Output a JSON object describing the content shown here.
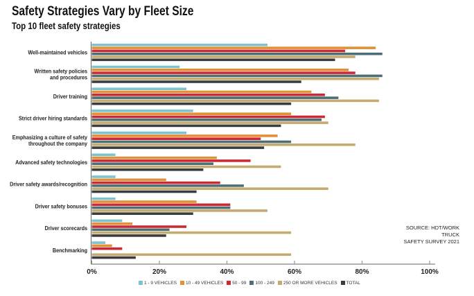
{
  "chart_data": {
    "type": "bar",
    "orientation": "horizontal",
    "title": "Safety Strategies Vary by Fleet Size",
    "subtitle": "Top 10 fleet safety strategies",
    "categories": [
      "Well-maintained vehicles",
      "Written safety policies and procedures",
      "Driver training",
      "Strict driver hiring standards",
      "Emphasizing a culture of safety throughout the company",
      "Advanced safety technologies",
      "Driver safety awards/recognition",
      "Driver safety bonuses",
      "Driver scorecards",
      "Benchmarking"
    ],
    "series": [
      {
        "name": "1 - 9 VEHICLES",
        "color": "#7cc3d0",
        "values": [
          52,
          26,
          28,
          30,
          28,
          7,
          7,
          7,
          9,
          4
        ]
      },
      {
        "name": "10 - 49 VEHICLES",
        "color": "#e38f35",
        "values": [
          84,
          76,
          65,
          59,
          55,
          37,
          22,
          31,
          12,
          6
        ]
      },
      {
        "name": "50 - 99",
        "color": "#cc2a33",
        "values": [
          75,
          78,
          69,
          69,
          50,
          47,
          38,
          41,
          28,
          9
        ]
      },
      {
        "name": "100 - 249",
        "color": "#4c6e74",
        "values": [
          86,
          86,
          73,
          68,
          59,
          36,
          45,
          41,
          23,
          0
        ]
      },
      {
        "name": "250 OR MORE VEHICLES",
        "color": "#c4ab70",
        "values": [
          78,
          85,
          85,
          70,
          78,
          56,
          70,
          52,
          59,
          59
        ]
      },
      {
        "name": "TOTAL",
        "color": "#3a3c3f",
        "values": [
          72,
          62,
          59,
          56,
          51,
          33,
          31,
          30,
          22,
          13
        ]
      }
    ],
    "xlim": [
      0,
      100
    ],
    "xticks": [
      "0%",
      "20%",
      "40%",
      "60%",
      "80%",
      "100%"
    ],
    "grid": false,
    "legend_position": "bottom",
    "source": [
      "SOURCE: HDT/WORK TRUCK",
      "SAFETY SURVEY 2021"
    ]
  }
}
